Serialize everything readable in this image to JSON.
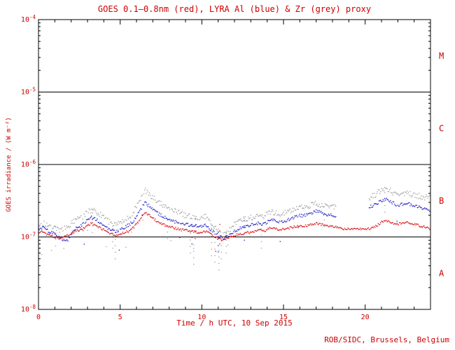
{
  "colors": {
    "text": "#cc0000",
    "axis": "#000000",
    "background": "#ffffff"
  },
  "chart_data": {
    "type": "scatter",
    "title": "GOES 0.1–0.8nm (red), LYRA Al (blue) & Zr (grey) proxy",
    "xlabel": "Time / h UTC, 10 Sep 2015",
    "ylabel": "GOES irradiance / (W m⁻²)",
    "credit": "ROB/SIDC, Brussels, Belgium",
    "grid": false,
    "x_range": [
      0,
      24
    ],
    "x_major_ticks": [
      0,
      5,
      10,
      15,
      20
    ],
    "x_minor_step": 1,
    "y_log_range": [
      -8,
      -4
    ],
    "y_ticks": [
      {
        "exp": -4,
        "label": "10⁻⁴"
      },
      {
        "exp": -5,
        "label": "10⁻⁵"
      },
      {
        "exp": -6,
        "label": "10⁻⁶"
      },
      {
        "exp": -7,
        "label": "10⁻⁷"
      },
      {
        "exp": -8,
        "label": "10⁻⁸"
      }
    ],
    "hlines_exp": [
      -5,
      -6,
      -7
    ],
    "flare_classes": [
      {
        "label": "M",
        "band": [
          -5,
          -4
        ]
      },
      {
        "label": "C",
        "band": [
          -6,
          -5
        ]
      },
      {
        "label": "B",
        "band": [
          -7,
          -6
        ]
      },
      {
        "label": "A",
        "band": [
          -8,
          -7
        ]
      }
    ],
    "series": [
      {
        "id": "goes",
        "name": "GOES 0.1-0.8nm",
        "color": "#dd2020",
        "x_start": 0,
        "x_step": 0.25,
        "scale": 1e-07,
        "values": [
          1.15,
          1.2,
          1.1,
          1.05,
          1.0,
          0.95,
          1.0,
          1.05,
          1.1,
          1.2,
          1.25,
          1.3,
          1.45,
          1.55,
          1.45,
          1.35,
          1.25,
          1.15,
          1.1,
          1.05,
          1.1,
          1.15,
          1.2,
          1.3,
          1.5,
          1.8,
          2.2,
          2.0,
          1.8,
          1.65,
          1.55,
          1.45,
          1.4,
          1.35,
          1.3,
          1.25,
          1.25,
          1.2,
          1.2,
          1.15,
          1.15,
          1.2,
          1.1,
          1.0,
          0.95,
          0.9,
          0.95,
          1.0,
          1.05,
          1.1,
          1.1,
          1.15,
          1.15,
          1.2,
          1.25,
          1.2,
          1.25,
          1.35,
          1.3,
          1.25,
          1.3,
          1.3,
          1.35,
          1.4,
          1.45,
          1.4,
          1.45,
          1.5,
          1.55,
          1.5,
          1.45,
          1.4,
          1.4,
          1.35,
          1.3,
          1.3,
          1.28,
          1.28,
          1.28,
          1.28,
          1.28,
          1.3,
          1.35,
          1.45,
          1.6,
          1.65,
          1.6,
          1.55,
          1.5,
          1.55,
          1.6,
          1.55,
          1.5,
          1.45,
          1.4,
          1.35,
          1.3
        ],
        "outliers": [
          {
            "x": 9.6,
            "y": 0.95
          },
          {
            "x": 11.1,
            "y": 0.8
          }
        ]
      },
      {
        "id": "lyra-al",
        "name": "LYRA Al proxy",
        "color": "#3030cc",
        "x_start": 0,
        "x_step": 0.25,
        "scale": 1e-07,
        "values": [
          1.3,
          1.35,
          1.25,
          1.15,
          1.1,
          1.0,
          0.9,
          0.88,
          1.05,
          1.3,
          1.4,
          1.5,
          1.7,
          1.85,
          1.75,
          1.6,
          1.45,
          1.3,
          1.25,
          1.2,
          1.25,
          1.35,
          1.45,
          1.6,
          1.9,
          2.4,
          3.0,
          2.7,
          2.4,
          2.15,
          2.0,
          1.85,
          1.75,
          1.65,
          1.6,
          1.55,
          1.5,
          1.45,
          1.45,
          1.4,
          1.4,
          1.45,
          1.3,
          1.15,
          1.05,
          0.95,
          1.0,
          1.1,
          1.2,
          1.3,
          1.35,
          1.4,
          1.45,
          1.5,
          1.55,
          1.5,
          1.6,
          1.75,
          1.65,
          1.6,
          1.65,
          1.7,
          1.8,
          1.9,
          2.0,
          1.95,
          2.05,
          2.15,
          2.3,
          2.2,
          2.1,
          2.0,
          2.0,
          1.95,
          null,
          null,
          null,
          null,
          null,
          null,
          null,
          2.6,
          2.7,
          2.9,
          3.2,
          3.3,
          3.1,
          2.9,
          2.7,
          2.8,
          2.9,
          2.8,
          2.7,
          2.6,
          2.5,
          2.4,
          2.3
        ],
        "outliers": [
          {
            "x": 9.4,
            "y": 0.8
          },
          {
            "x": 11.0,
            "y": 0.62
          },
          {
            "x": 12.6,
            "y": 0.9
          }
        ]
      },
      {
        "id": "lyra-zr",
        "name": "LYRA Zr proxy",
        "color": "#a8a8a8",
        "x_start": 0,
        "x_step": 0.25,
        "scale": 1e-07,
        "values": [
          1.5,
          1.55,
          1.45,
          1.35,
          1.3,
          1.25,
          1.3,
          1.35,
          1.5,
          1.7,
          1.8,
          1.95,
          2.2,
          2.4,
          2.25,
          2.05,
          1.85,
          1.65,
          1.55,
          1.5,
          1.55,
          1.7,
          1.85,
          2.1,
          2.6,
          3.5,
          4.5,
          4.0,
          3.5,
          3.1,
          2.85,
          2.6,
          2.45,
          2.3,
          2.2,
          2.1,
          2.0,
          1.95,
          1.9,
          1.85,
          1.8,
          1.9,
          1.6,
          1.4,
          1.2,
          1.05,
          1.15,
          1.3,
          1.45,
          1.6,
          1.7,
          1.8,
          1.85,
          1.9,
          2.0,
          1.95,
          2.05,
          2.25,
          2.15,
          2.05,
          2.1,
          2.2,
          2.3,
          2.45,
          2.6,
          2.5,
          2.6,
          2.75,
          2.95,
          2.8,
          2.7,
          2.6,
          2.6,
          2.5,
          null,
          null,
          null,
          null,
          null,
          null,
          null,
          3.5,
          3.7,
          4.0,
          4.6,
          4.8,
          4.4,
          4.1,
          3.8,
          3.9,
          4.1,
          3.95,
          3.8,
          3.7,
          3.6,
          3.5,
          3.4
        ],
        "outliers": [
          {
            "x": 1.05,
            "y": 0.75
          },
          {
            "x": 3.3,
            "y": 1.15
          },
          {
            "x": 4.55,
            "y": 0.7
          },
          {
            "x": 4.7,
            "y": 0.5
          },
          {
            "x": 7.9,
            "y": 0.95
          },
          {
            "x": 9.3,
            "y": 0.6
          },
          {
            "x": 9.5,
            "y": 0.42
          },
          {
            "x": 10.6,
            "y": 0.55
          },
          {
            "x": 10.8,
            "y": 0.45
          },
          {
            "x": 11.05,
            "y": 0.35
          },
          {
            "x": 11.2,
            "y": 0.5
          },
          {
            "x": 11.5,
            "y": 0.6
          },
          {
            "x": 13.65,
            "y": 0.7
          },
          {
            "x": 17.5,
            "y": 1.4
          },
          {
            "x": 21.2,
            "y": 2.2
          }
        ]
      }
    ]
  }
}
